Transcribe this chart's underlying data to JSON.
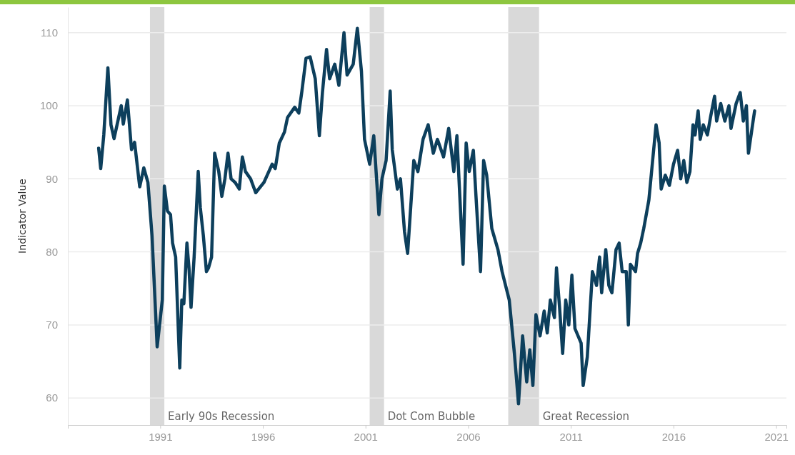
{
  "chart_data": {
    "type": "line",
    "ylabel": "Indicator Value",
    "xlim": [
      1986.5,
      2021.5
    ],
    "xticks": [
      1991,
      1996,
      2001,
      2006,
      2011,
      2016,
      2021
    ],
    "ylim": [
      56.3,
      113.5
    ],
    "yticks": [
      60,
      70,
      80,
      90,
      100,
      110
    ],
    "grid": "y",
    "marker": "none",
    "line_style": "solid",
    "bands": [
      {
        "axis": "x",
        "from": 1990.5,
        "to": 1991.2,
        "label": "Early 90s Recession",
        "color": "#d9d9d9"
      },
      {
        "axis": "x",
        "from": 2001.2,
        "to": 2001.9,
        "label": "Dot Com Bubble",
        "color": "#d9d9d9"
      },
      {
        "axis": "x",
        "from": 2007.95,
        "to": 2009.45,
        "label": "Great Recession",
        "color": "#d9d9d9"
      }
    ],
    "series": [
      {
        "color": "#0d3f5c",
        "x": [
          1988.0,
          1988.1,
          1988.25,
          1988.45,
          1988.6,
          1988.75,
          1989.1,
          1989.2,
          1989.4,
          1989.6,
          1989.75,
          1990.0,
          1990.2,
          1990.4,
          1990.6,
          1990.85,
          1991.1,
          1991.2,
          1991.35,
          1991.5,
          1991.6,
          1991.75,
          1991.95,
          1992.05,
          1992.15,
          1992.3,
          1992.4,
          1992.5,
          1992.65,
          1992.85,
          1992.95,
          1993.1,
          1993.25,
          1993.35,
          1993.5,
          1993.65,
          1993.85,
          1994.0,
          1994.15,
          1994.3,
          1994.45,
          1994.65,
          1994.85,
          1995.0,
          1995.15,
          1995.4,
          1995.65,
          1996.05,
          1996.45,
          1996.6,
          1996.8,
          1997.05,
          1997.2,
          1997.55,
          1997.75,
          1997.9,
          1998.1,
          1998.3,
          1998.55,
          1998.75,
          1998.9,
          1999.1,
          1999.25,
          1999.5,
          1999.7,
          1999.95,
          2000.1,
          2000.4,
          2000.6,
          2000.8,
          2000.95,
          2001.2,
          2001.4,
          2001.65,
          2001.8,
          2002.0,
          2002.2,
          2002.3,
          2002.55,
          2002.7,
          2002.9,
          2003.05,
          2003.35,
          2003.55,
          2003.8,
          2004.05,
          2004.3,
          2004.5,
          2004.8,
          2005.05,
          2005.3,
          2005.45,
          2005.75,
          2005.9,
          2006.05,
          2006.25,
          2006.4,
          2006.6,
          2006.75,
          2006.9,
          2007.15,
          2007.45,
          2007.65,
          2008.0,
          2008.25,
          2008.45,
          2008.65,
          2008.85,
          2009.0,
          2009.15,
          2009.3,
          2009.5,
          2009.7,
          2009.85,
          2010.0,
          2010.2,
          2010.3,
          2010.45,
          2010.6,
          2010.75,
          2010.9,
          2011.05,
          2011.2,
          2011.5,
          2011.6,
          2011.8,
          2012.05,
          2012.25,
          2012.4,
          2012.5,
          2012.7,
          2012.85,
          2013.0,
          2013.2,
          2013.35,
          2013.5,
          2013.7,
          2013.8,
          2013.9,
          2014.15,
          2014.25,
          2014.4,
          2014.55,
          2014.8,
          2015.0,
          2015.15,
          2015.3,
          2015.4,
          2015.6,
          2015.8,
          2016.0,
          2016.2,
          2016.35,
          2016.5,
          2016.65,
          2016.8,
          2016.95,
          2017.05,
          2017.2,
          2017.3,
          2017.45,
          2017.65,
          2017.8,
          2018.0,
          2018.1,
          2018.3,
          2018.5,
          2018.7,
          2018.8,
          2019.05,
          2019.25,
          2019.4,
          2019.55,
          2019.65,
          2019.85,
          2019.95
        ],
        "values": [
          94.2,
          91.4,
          96,
          105.2,
          97.4,
          95.5,
          100,
          97.5,
          100.8,
          94,
          95,
          88.9,
          91.5,
          89.5,
          82.2,
          67,
          73.4,
          89,
          85.6,
          85.1,
          81.2,
          79.3,
          64.1,
          73.4,
          72.9,
          81.2,
          77.8,
          72.4,
          79.3,
          91,
          86.1,
          82.2,
          77.3,
          77.8,
          79.3,
          93.5,
          91,
          87.6,
          90,
          93.5,
          90,
          89.5,
          88.6,
          93,
          91,
          90,
          88.1,
          89.5,
          92,
          91.4,
          94.9,
          96.4,
          98.4,
          99.8,
          99,
          102,
          106.5,
          106.7,
          103.7,
          95.9,
          101.8,
          107.7,
          103.7,
          105.7,
          102.8,
          110,
          104.2,
          105.7,
          110.6,
          104.7,
          95.4,
          92,
          95.9,
          85.1,
          90,
          92.5,
          102,
          94,
          88.6,
          90,
          82.7,
          79.8,
          92.5,
          91,
          95.4,
          97.4,
          93.5,
          95.4,
          93,
          96.9,
          91,
          95.9,
          78.3,
          94.9,
          91,
          93.9,
          86.6,
          77.3,
          92.5,
          90.5,
          83.2,
          80.3,
          77.3,
          73.4,
          66.1,
          59.2,
          68.5,
          62.2,
          66.6,
          61.7,
          71.4,
          68.5,
          71.9,
          68.9,
          73.4,
          71,
          77.8,
          72.4,
          66.1,
          73.4,
          70,
          76.8,
          69.5,
          67.5,
          61.7,
          65.6,
          77.3,
          75.4,
          79.3,
          74.4,
          80.3,
          75.4,
          74.4,
          80.3,
          81.2,
          77.3,
          77.3,
          70,
          78.3,
          77.3,
          79.8,
          81.2,
          83.2,
          87.1,
          93,
          97.4,
          94.9,
          88.6,
          90.5,
          89.1,
          92,
          93.9,
          90,
          92.5,
          89.5,
          91,
          97.4,
          96,
          99.3,
          95.4,
          97.4,
          96,
          98.4,
          101.3,
          97.9,
          100.3,
          97.9,
          100,
          96.9,
          100.3,
          101.8,
          97.9,
          100,
          93.5,
          97.4,
          99.3
        ]
      }
    ]
  }
}
